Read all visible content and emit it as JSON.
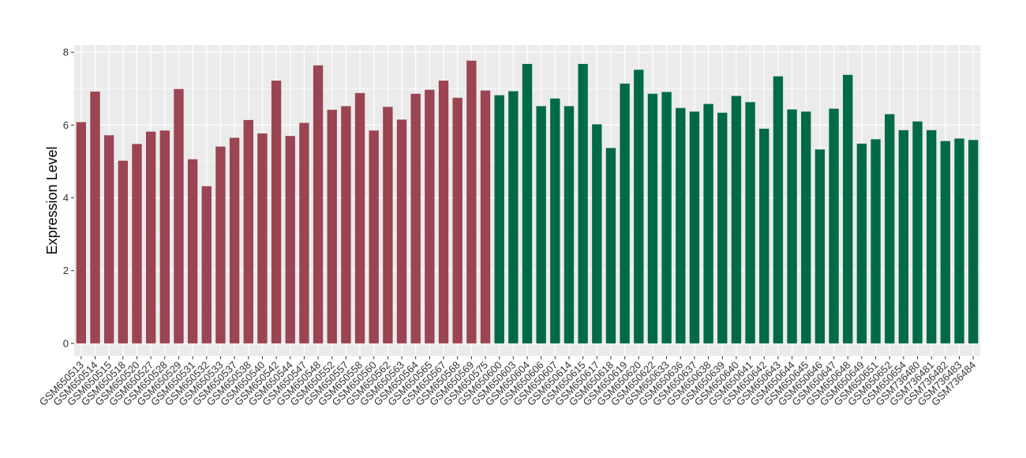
{
  "chart_data": {
    "type": "bar",
    "title": "",
    "xlabel": "",
    "ylabel": "Expression Level",
    "ylim": [
      0,
      8.2
    ],
    "yticks": [
      0,
      2,
      4,
      6,
      8
    ],
    "grid": true,
    "legend": "none",
    "colors": {
      "group1": "#9b4452",
      "group2": "#006a47",
      "panel": "#ebebeb",
      "grid": "#ffffff"
    },
    "categories": [
      "GSM650513",
      "GSM650514",
      "GSM650515",
      "GSM650518",
      "GSM650520",
      "GSM650527",
      "GSM650528",
      "GSM650529",
      "GSM650531",
      "GSM650532",
      "GSM650533",
      "GSM650537",
      "GSM650538",
      "GSM650540",
      "GSM650542",
      "GSM650544",
      "GSM650547",
      "GSM650548",
      "GSM650552",
      "GSM650557",
      "GSM650558",
      "GSM650560",
      "GSM650562",
      "GSM650563",
      "GSM650564",
      "GSM650565",
      "GSM650567",
      "GSM650568",
      "GSM650569",
      "GSM650575",
      "GSM650600",
      "GSM650603",
      "GSM650604",
      "GSM650606",
      "GSM650607",
      "GSM650614",
      "GSM650615",
      "GSM650617",
      "GSM650618",
      "GSM650619",
      "GSM650620",
      "GSM650622",
      "GSM650633",
      "GSM650636",
      "GSM650637",
      "GSM650638",
      "GSM650639",
      "GSM650640",
      "GSM650641",
      "GSM650642",
      "GSM650643",
      "GSM650644",
      "GSM650645",
      "GSM650646",
      "GSM650647",
      "GSM650648",
      "GSM650649",
      "GSM650651",
      "GSM650652",
      "GSM650654",
      "GSM736480",
      "GSM736481",
      "GSM736482",
      "GSM736483",
      "GSM736484"
    ],
    "values": [
      6.08,
      6.92,
      5.72,
      5.02,
      5.48,
      5.82,
      5.85,
      6.99,
      5.06,
      4.32,
      5.41,
      5.65,
      6.14,
      5.77,
      7.22,
      5.7,
      6.06,
      7.64,
      6.42,
      6.52,
      6.88,
      5.85,
      6.5,
      6.15,
      6.86,
      6.97,
      7.22,
      6.75,
      7.77,
      6.95,
      6.82,
      6.93,
      7.68,
      6.52,
      6.73,
      6.52,
      7.68,
      6.02,
      5.37,
      7.14,
      7.52,
      6.86,
      6.91,
      6.47,
      6.37,
      6.58,
      6.34,
      6.8,
      6.63,
      5.9,
      7.34,
      6.43,
      6.37,
      5.33,
      6.45,
      7.38,
      5.49,
      5.61,
      6.3,
      5.86,
      6.1,
      5.86,
      5.56,
      5.63,
      5.59
    ],
    "groups": [
      1,
      1,
      1,
      1,
      1,
      1,
      1,
      1,
      1,
      1,
      1,
      1,
      1,
      1,
      1,
      1,
      1,
      1,
      1,
      1,
      1,
      1,
      1,
      1,
      1,
      1,
      1,
      1,
      1,
      1,
      2,
      2,
      2,
      2,
      2,
      2,
      2,
      2,
      2,
      2,
      2,
      2,
      2,
      2,
      2,
      2,
      2,
      2,
      2,
      2,
      2,
      2,
      2,
      2,
      2,
      2,
      2,
      2,
      2,
      2,
      2,
      2,
      2,
      2,
      2
    ]
  }
}
